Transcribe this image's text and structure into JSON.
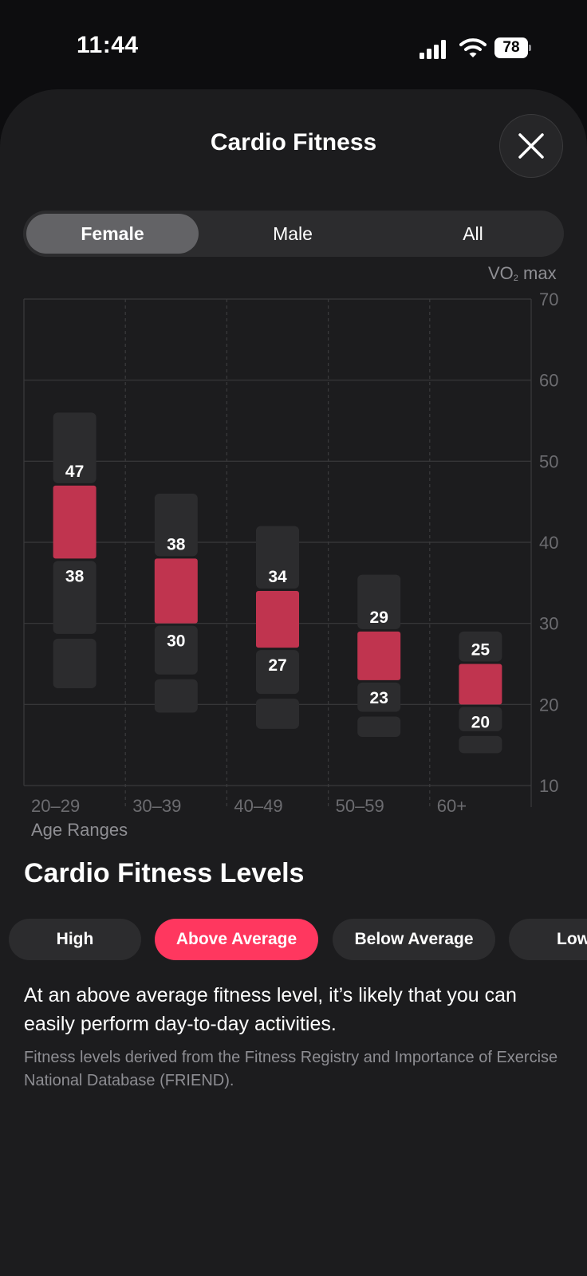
{
  "status_bar": {
    "time": "11:44",
    "battery": "78",
    "icons": [
      "signal-icon",
      "wifi-icon",
      "battery-icon"
    ]
  },
  "sheet": {
    "title": "Cardio Fitness",
    "close_icon": "close-icon"
  },
  "segments": [
    {
      "label": "Female",
      "selected": true
    },
    {
      "label": "Male",
      "selected": false
    },
    {
      "label": "All",
      "selected": false
    }
  ],
  "colors": {
    "accent": "#ff375f",
    "highlight_band": "#c0344f",
    "range_bar": "#2c2c2e",
    "sheet_bg": "#1c1c1e"
  },
  "chart_data": {
    "type": "bar",
    "xlabel": "Age Ranges",
    "ylabel": "VO₂ max",
    "ylim": [
      10,
      70
    ],
    "yticks": [
      10,
      20,
      30,
      40,
      50,
      60,
      70
    ],
    "grid": true,
    "categories": [
      "20–29",
      "30–39",
      "40–49",
      "50–59",
      "60+"
    ],
    "series": [
      {
        "name": "Above Average upper bound",
        "values": [
          47,
          38,
          34,
          29,
          25
        ]
      },
      {
        "name": "Above Average lower bound",
        "values": [
          38,
          30,
          27,
          23,
          20
        ]
      }
    ],
    "full_range": [
      {
        "low": 22,
        "high": 56
      },
      {
        "low": 19,
        "high": 46
      },
      {
        "low": 17,
        "high": 42
      },
      {
        "low": 16,
        "high": 36
      },
      {
        "low": 14,
        "high": 29
      }
    ]
  },
  "levels": {
    "heading": "Cardio Fitness Levels",
    "pills": [
      {
        "label": "High",
        "active": false
      },
      {
        "label": "Above Average",
        "active": true
      },
      {
        "label": "Below Average",
        "active": false
      },
      {
        "label": "Low",
        "active": false
      }
    ],
    "description": "At an above average fitness level, it’s likely that you can easily perform day-to-day activities.",
    "source": "Fitness levels derived from the Fitness Registry and Importance of Exercise National Database (FRIEND)."
  }
}
